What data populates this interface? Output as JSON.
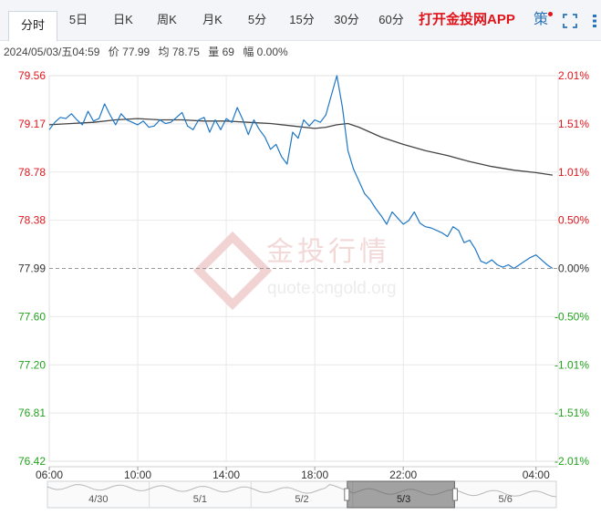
{
  "tabs": [
    {
      "label": "分时",
      "active": true
    },
    {
      "label": "5日"
    },
    {
      "label": "日K"
    },
    {
      "label": "周K"
    },
    {
      "label": "月K"
    },
    {
      "label": "5分"
    },
    {
      "label": "15分"
    },
    {
      "label": "30分"
    },
    {
      "label": "60分"
    }
  ],
  "promo_label": "打开金投网APP",
  "icons": {
    "strategy": "策",
    "strategy_icon": "strategy-icon",
    "fullscreen": "fullscreen-icon",
    "more": "more-icon"
  },
  "info": {
    "datetime": "2024/05/03/五04:59",
    "price_label": "价",
    "price": "77.99",
    "avg_label": "均",
    "avg": "78.75",
    "vol_label": "量",
    "vol": "69",
    "chg_label": "幅",
    "chg": "0.00%"
  },
  "watermark": {
    "brand": "金投行情",
    "site": "quote.cngold.org"
  },
  "colors": {
    "up": "#e0151b",
    "down": "#23a31f",
    "line": "#1f77c4",
    "avg": "#444444",
    "grid": "#e8e8e8"
  },
  "chart_data": {
    "type": "line",
    "reference_price": 77.99,
    "ylim": [
      76.42,
      79.56
    ],
    "y_ticks": [
      "79.56",
      "79.17",
      "78.78",
      "78.38",
      "77.99",
      "77.60",
      "77.20",
      "76.81",
      "76.42"
    ],
    "pct_ticks": [
      "2.01%",
      "1.51%",
      "1.01%",
      "0.50%",
      "0.00%",
      "-0.50%",
      "-1.01%",
      "-1.51%",
      "-2.01%"
    ],
    "x_ticks": [
      "06:00",
      "10:00",
      "14:00",
      "18:00",
      "22:00",
      "04:00"
    ],
    "x_tick_hours": [
      0,
      4,
      8,
      12,
      16,
      22
    ],
    "x_span_hours": 23,
    "series": [
      {
        "kind": "price",
        "x": [
          0,
          0.25,
          0.5,
          0.75,
          1,
          1.25,
          1.5,
          1.75,
          2,
          2.25,
          2.5,
          2.75,
          3,
          3.25,
          3.5,
          3.75,
          4,
          4.25,
          4.5,
          4.75,
          5,
          5.25,
          5.5,
          5.75,
          6,
          6.25,
          6.5,
          6.75,
          7,
          7.25,
          7.5,
          7.75,
          8,
          8.25,
          8.5,
          8.75,
          9,
          9.25,
          9.5,
          9.75,
          10,
          10.25,
          10.5,
          10.75,
          11,
          11.25,
          11.5,
          11.75,
          12,
          12.25,
          12.5,
          12.75,
          13,
          13.25,
          13.5,
          13.75,
          14,
          14.25,
          14.5,
          14.75,
          15,
          15.25,
          15.5,
          15.75,
          16,
          16.25,
          16.5,
          16.75,
          17,
          17.25,
          17.5,
          17.75,
          18,
          18.25,
          18.5,
          18.75,
          19,
          19.25,
          19.5,
          19.75,
          20,
          20.25,
          20.5,
          20.75,
          21,
          21.25,
          21.5,
          21.75,
          22,
          22.25,
          22.5,
          22.75
        ],
        "values": [
          79.12,
          79.18,
          79.22,
          79.21,
          79.25,
          79.2,
          79.16,
          79.27,
          79.19,
          79.21,
          79.33,
          79.24,
          79.16,
          79.25,
          79.2,
          79.18,
          79.16,
          79.19,
          79.14,
          79.15,
          79.2,
          79.17,
          79.18,
          79.22,
          79.26,
          79.15,
          79.12,
          79.2,
          79.22,
          79.1,
          79.2,
          79.12,
          79.21,
          79.18,
          79.3,
          79.2,
          79.08,
          79.2,
          79.12,
          79.06,
          78.96,
          79.0,
          78.9,
          78.84,
          79.1,
          79.05,
          79.2,
          79.15,
          79.2,
          79.18,
          79.24,
          79.4,
          79.56,
          79.3,
          78.95,
          78.8,
          78.7,
          78.6,
          78.55,
          78.48,
          78.42,
          78.35,
          78.45,
          78.4,
          78.35,
          78.38,
          78.45,
          78.36,
          78.33,
          78.32,
          78.3,
          78.28,
          78.25,
          78.33,
          78.3,
          78.2,
          78.22,
          78.15,
          78.05,
          78.03,
          78.06,
          78.02,
          78.0,
          78.02,
          77.99,
          78.02,
          78.05,
          78.08,
          78.1,
          78.06,
          78.02,
          77.99
        ]
      },
      {
        "kind": "avg",
        "x": [
          0,
          1,
          2,
          3,
          4,
          5,
          6,
          7,
          8,
          9,
          10,
          11,
          12,
          12.5,
          13,
          13.5,
          14,
          14.5,
          15,
          16,
          17,
          18,
          19,
          20,
          21,
          22,
          22.75
        ],
        "values": [
          79.16,
          79.17,
          79.18,
          79.2,
          79.21,
          79.2,
          79.2,
          79.19,
          79.19,
          79.18,
          79.17,
          79.15,
          79.13,
          79.14,
          79.16,
          79.17,
          79.14,
          79.1,
          79.06,
          79.0,
          78.95,
          78.91,
          78.86,
          78.82,
          78.79,
          78.77,
          78.75
        ]
      }
    ]
  },
  "navigator": {
    "labels": [
      "4/30",
      "5/1",
      "5/2",
      "5/3",
      "5/6"
    ]
  }
}
